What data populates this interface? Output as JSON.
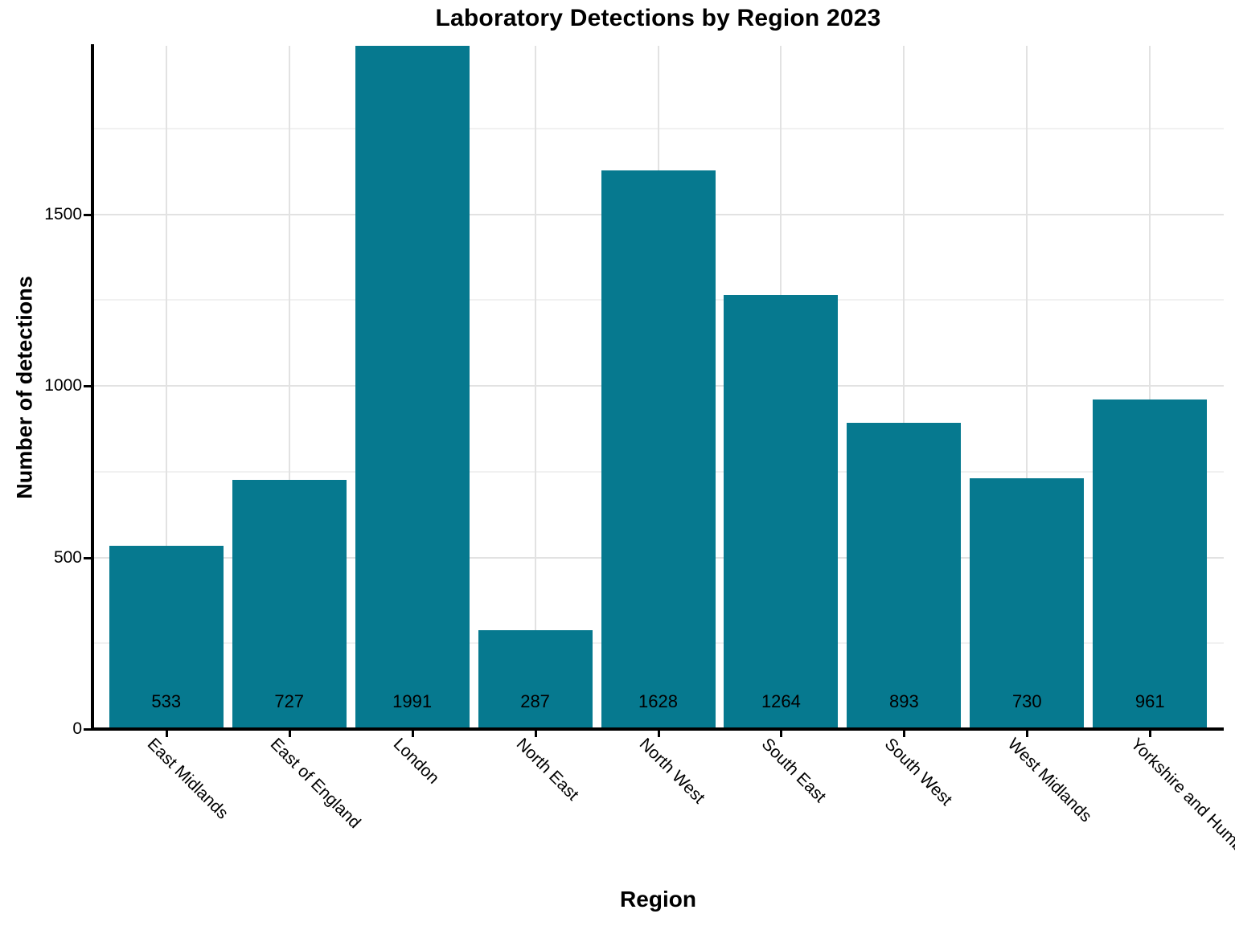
{
  "title": "Laboratory Detections by Region 2023",
  "chart_data": {
    "type": "bar",
    "title": "Laboratory Detections by Region 2023",
    "xlabel": "Region",
    "ylabel": "Number of detections",
    "categories": [
      "East Midlands",
      "East of England",
      "London",
      "North East",
      "North West",
      "South East",
      "South West",
      "West Midlands",
      "Yorkshire and Humber"
    ],
    "values": [
      533,
      727,
      1991,
      287,
      1628,
      1264,
      893,
      730,
      961
    ],
    "bar_value_labels": [
      "533",
      "727",
      "1991",
      "287",
      "1628",
      "1264",
      "893",
      "730",
      "961"
    ],
    "ylim": [
      0,
      1991
    ],
    "yticks": [
      0,
      500,
      1000,
      1500
    ],
    "ytick_labels": [
      "0",
      "500",
      "1000",
      "1500"
    ],
    "y_minor_gridlines": [
      250,
      750,
      1250,
      1750
    ],
    "grid": "horizontal major and minor gridlines; vertical major gridlines at category centers",
    "legend": "none",
    "x_tick_rotation_deg": 45,
    "colors": {
      "bar": "#06798f",
      "grid_major": "#e2e2e2",
      "grid_minor": "#f1f1f1",
      "axis": "#000000",
      "text": "#000000",
      "background": "#ffffff"
    }
  }
}
